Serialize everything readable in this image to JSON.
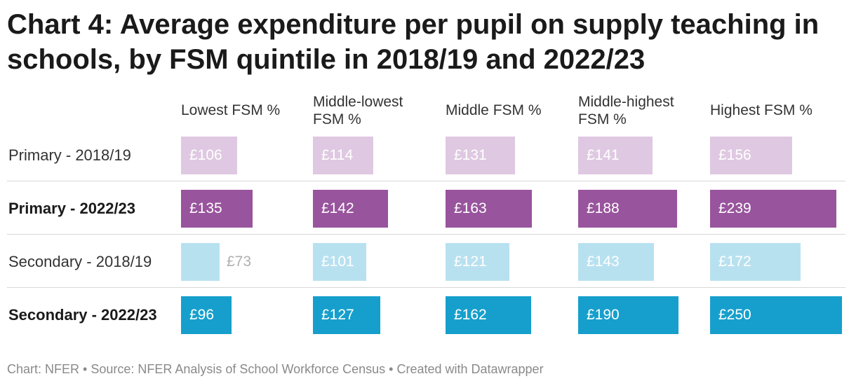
{
  "title": "Chart 4: Average expenditure per pupil on supply teaching in schools, by FSM quintile in 2018/19 and 2022/23",
  "footer": "Chart: NFER • Source: NFER Analysis of School Workforce Census • Created with Datawrapper",
  "colors": {
    "primary_2018": "#dfc8e1",
    "primary_2022": "#98549c",
    "secondary_2018": "#b8e1f0",
    "secondary_2022": "#169fcc",
    "outside_label": "#b0b0b0"
  },
  "chart_data": {
    "type": "bar",
    "title": "Chart 4: Average expenditure per pupil on supply teaching in schools, by FSM quintile in 2018/19 and 2022/23",
    "categories": [
      "Lowest FSM %",
      "Middle-lowest FSM %",
      "Middle FSM %",
      "Middle-highest FSM %",
      "Highest FSM %"
    ],
    "currency": "£",
    "xlim": [
      0,
      250
    ],
    "series": [
      {
        "name": "Primary - 2018/19",
        "bold": false,
        "color": "#dfc8e1",
        "values": [
          106,
          114,
          131,
          141,
          156
        ]
      },
      {
        "name": "Primary - 2022/23",
        "bold": true,
        "color": "#98549c",
        "values": [
          135,
          142,
          163,
          188,
          239
        ]
      },
      {
        "name": "Secondary - 2018/19",
        "bold": false,
        "color": "#b8e1f0",
        "values": [
          73,
          101,
          121,
          143,
          172
        ]
      },
      {
        "name": "Secondary - 2022/23",
        "bold": true,
        "color": "#169fcc",
        "values": [
          96,
          127,
          162,
          190,
          250
        ]
      }
    ]
  }
}
